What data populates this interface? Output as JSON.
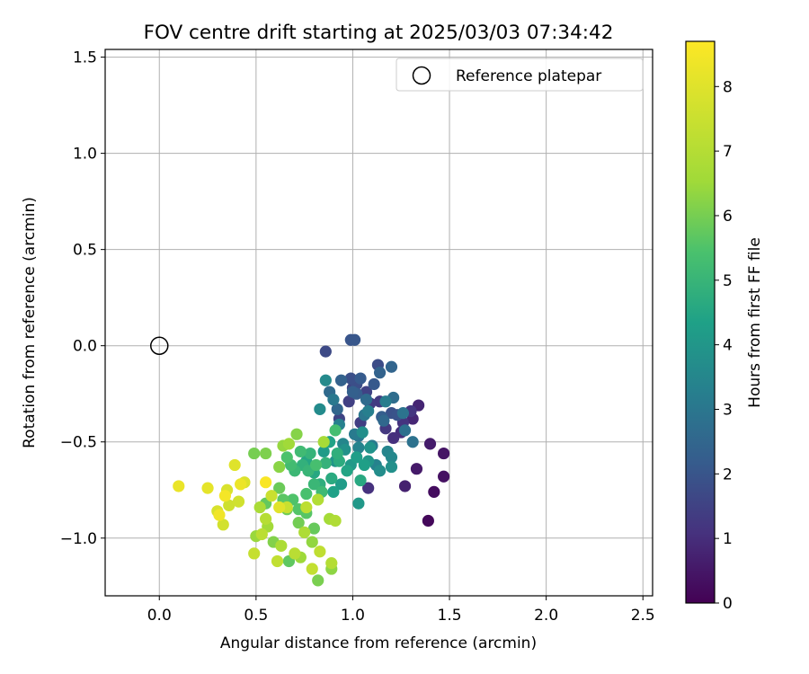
{
  "chart_data": {
    "type": "scatter",
    "title": "FOV centre drift starting at 2025/03/03 07:34:42",
    "xlabel": "Angular distance from reference (arcmin)",
    "ylabel": "Rotation from reference (arcmin)",
    "xlim": [
      -0.28,
      2.55
    ],
    "ylim": [
      -1.3,
      1.54
    ],
    "xticks": [
      0.0,
      0.5,
      1.0,
      1.5,
      2.0,
      2.5
    ],
    "xtick_labels": [
      "0.0",
      "0.5",
      "1.0",
      "1.5",
      "2.0",
      "2.5"
    ],
    "yticks": [
      -1.0,
      -0.5,
      0.0,
      0.5,
      1.0,
      1.5
    ],
    "ytick_labels": [
      "−1.0",
      "−0.5",
      "0.0",
      "0.5",
      "1.0",
      "1.5"
    ],
    "grid": true,
    "legend": {
      "position": "top-right",
      "entries": [
        "Reference platepar"
      ]
    },
    "reference_point": {
      "x": 0.0,
      "y": 0.0
    },
    "colorbar": {
      "label": "Hours from first FF file",
      "colormap": "viridis",
      "range": [
        0,
        8.7
      ],
      "ticks": [
        0,
        1,
        2,
        3,
        4,
        5,
        6,
        7,
        8
      ],
      "tick_labels": [
        "0",
        "1",
        "2",
        "3",
        "4",
        "5",
        "6",
        "7",
        "8"
      ]
    },
    "points_columns": [
      "x",
      "y",
      "hours"
    ],
    "points": [
      [
        1.39,
        -0.91,
        0.15
      ],
      [
        1.42,
        -0.76,
        0.25
      ],
      [
        1.47,
        -0.68,
        0.35
      ],
      [
        1.47,
        -0.56,
        0.45
      ],
      [
        1.33,
        -0.64,
        0.55
      ],
      [
        1.4,
        -0.51,
        0.6
      ],
      [
        1.27,
        -0.73,
        0.7
      ],
      [
        1.34,
        -0.31,
        0.8
      ],
      [
        1.31,
        -0.38,
        0.85
      ],
      [
        1.25,
        -0.45,
        1.0
      ],
      [
        1.21,
        -0.48,
        1.05
      ],
      [
        1.08,
        -0.74,
        1.1
      ],
      [
        1.26,
        -0.4,
        1.15
      ],
      [
        1.3,
        -0.34,
        1.2
      ],
      [
        1.17,
        -0.43,
        1.25
      ],
      [
        1.14,
        -0.29,
        1.3
      ],
      [
        1.09,
        -0.3,
        1.35
      ],
      [
        1.04,
        -0.4,
        1.4
      ],
      [
        0.98,
        -0.29,
        1.45
      ],
      [
        1.07,
        -0.24,
        1.5
      ],
      [
        0.93,
        -0.38,
        1.55
      ],
      [
        1.0,
        -0.22,
        1.6
      ],
      [
        0.86,
        -0.03,
        1.7
      ],
      [
        1.13,
        -0.1,
        1.75
      ],
      [
        1.02,
        -0.2,
        1.8
      ],
      [
        0.99,
        -0.17,
        1.85
      ],
      [
        1.2,
        -0.35,
        1.9
      ],
      [
        1.23,
        -0.36,
        1.95
      ],
      [
        0.99,
        0.03,
        2.0
      ],
      [
        1.01,
        0.03,
        2.05
      ],
      [
        1.11,
        -0.2,
        2.1
      ],
      [
        1.04,
        -0.17,
        2.15
      ],
      [
        1.02,
        -0.25,
        2.2
      ],
      [
        1.15,
        -0.37,
        2.25
      ],
      [
        1.0,
        -0.24,
        2.3
      ],
      [
        0.94,
        -0.18,
        2.35
      ],
      [
        1.14,
        -0.14,
        2.4
      ],
      [
        1.2,
        -0.11,
        2.45
      ],
      [
        0.92,
        -0.33,
        2.5
      ],
      [
        1.16,
        -0.39,
        2.55
      ],
      [
        0.88,
        -0.24,
        2.6
      ],
      [
        1.07,
        -0.28,
        2.65
      ],
      [
        1.21,
        -0.27,
        2.7
      ],
      [
        1.27,
        -0.44,
        2.8
      ],
      [
        1.31,
        -0.5,
        2.85
      ],
      [
        1.26,
        -0.35,
        2.9
      ],
      [
        1.03,
        -0.47,
        2.95
      ],
      [
        1.06,
        -0.36,
        3.0
      ],
      [
        0.9,
        -0.28,
        3.05
      ],
      [
        1.01,
        -0.46,
        3.1
      ],
      [
        1.1,
        -0.52,
        3.15
      ],
      [
        1.17,
        -0.29,
        3.2
      ],
      [
        1.08,
        -0.34,
        3.25
      ],
      [
        0.93,
        -0.41,
        3.3
      ],
      [
        1.12,
        -0.62,
        3.35
      ],
      [
        1.03,
        -0.53,
        3.4
      ],
      [
        1.18,
        -0.55,
        3.45
      ],
      [
        0.95,
        -0.51,
        3.5
      ],
      [
        1.2,
        -0.58,
        3.55
      ],
      [
        0.86,
        -0.18,
        3.6
      ],
      [
        0.83,
        -0.33,
        3.65
      ],
      [
        1.14,
        -0.65,
        3.7
      ],
      [
        1.05,
        -0.45,
        3.75
      ],
      [
        1.2,
        -0.63,
        3.8
      ],
      [
        0.96,
        -0.54,
        3.85
      ],
      [
        1.09,
        -0.53,
        3.9
      ],
      [
        0.91,
        -0.6,
        3.95
      ],
      [
        1.08,
        -0.6,
        4.0
      ],
      [
        1.03,
        -0.82,
        4.05
      ],
      [
        0.99,
        -0.62,
        4.1
      ],
      [
        0.85,
        -0.55,
        4.15
      ],
      [
        0.94,
        -0.72,
        4.2
      ],
      [
        1.02,
        -0.58,
        4.25
      ],
      [
        1.06,
        -0.62,
        4.3
      ],
      [
        0.9,
        -0.76,
        4.35
      ],
      [
        0.88,
        -0.5,
        4.4
      ],
      [
        0.97,
        -0.65,
        4.45
      ],
      [
        0.76,
        -0.6,
        4.5
      ],
      [
        0.8,
        -0.66,
        4.55
      ],
      [
        1.04,
        -0.7,
        4.6
      ],
      [
        0.89,
        -0.69,
        4.65
      ],
      [
        0.93,
        -0.6,
        4.7
      ],
      [
        0.83,
        -0.72,
        4.75
      ],
      [
        0.92,
        -0.56,
        4.8
      ],
      [
        0.74,
        -0.62,
        4.85
      ],
      [
        0.86,
        -0.61,
        4.9
      ],
      [
        0.78,
        -0.56,
        4.95
      ],
      [
        0.77,
        -0.65,
        5.0
      ],
      [
        0.8,
        -0.72,
        5.05
      ],
      [
        0.7,
        -0.65,
        5.1
      ],
      [
        0.84,
        -0.76,
        5.15
      ],
      [
        0.73,
        -0.55,
        5.2
      ],
      [
        0.68,
        -0.62,
        5.25
      ],
      [
        0.91,
        -0.44,
        5.3
      ],
      [
        0.81,
        -0.62,
        5.35
      ],
      [
        0.76,
        -0.77,
        5.4
      ],
      [
        0.66,
        -0.58,
        5.45
      ],
      [
        0.69,
        -0.8,
        5.5
      ],
      [
        0.72,
        -0.85,
        5.55
      ],
      [
        0.76,
        -0.87,
        5.6
      ],
      [
        0.64,
        -0.8,
        5.65
      ],
      [
        0.67,
        -1.12,
        5.7
      ],
      [
        0.55,
        -0.82,
        5.75
      ],
      [
        0.8,
        -0.95,
        5.8
      ],
      [
        0.62,
        -0.74,
        5.85
      ],
      [
        0.66,
        -0.85,
        5.9
      ],
      [
        0.72,
        -0.92,
        5.95
      ],
      [
        0.49,
        -0.56,
        6.0
      ],
      [
        0.82,
        -1.22,
        6.05
      ],
      [
        0.55,
        -0.56,
        6.1
      ],
      [
        0.59,
        -1.02,
        6.15
      ],
      [
        0.71,
        -0.46,
        6.2
      ],
      [
        0.62,
        -0.63,
        6.25
      ],
      [
        0.89,
        -1.16,
        6.3
      ],
      [
        0.79,
        -1.02,
        6.35
      ],
      [
        0.64,
        -0.52,
        6.4
      ],
      [
        0.5,
        -0.99,
        6.45
      ],
      [
        0.73,
        -1.1,
        6.5
      ],
      [
        0.67,
        -0.51,
        6.55
      ],
      [
        0.56,
        -0.94,
        6.6
      ],
      [
        0.88,
        -0.9,
        6.65
      ],
      [
        0.85,
        -0.5,
        6.7
      ],
      [
        0.52,
        -0.84,
        6.75
      ],
      [
        0.63,
        -1.04,
        6.8
      ],
      [
        0.75,
        -0.97,
        6.85
      ],
      [
        0.91,
        -0.91,
        6.9
      ],
      [
        0.82,
        -0.8,
        6.95
      ],
      [
        0.89,
        -1.13,
        7.0
      ],
      [
        0.55,
        -0.9,
        7.05
      ],
      [
        0.7,
        -1.08,
        7.1
      ],
      [
        0.53,
        -0.98,
        7.15
      ],
      [
        0.76,
        -0.84,
        7.2
      ],
      [
        0.83,
        -1.07,
        7.25
      ],
      [
        0.61,
        -1.12,
        7.3
      ],
      [
        0.79,
        -1.16,
        7.35
      ],
      [
        0.49,
        -1.08,
        7.4
      ],
      [
        0.66,
        -0.84,
        7.45
      ],
      [
        0.58,
        -0.78,
        7.5
      ],
      [
        0.36,
        -0.83,
        7.6
      ],
      [
        0.41,
        -0.81,
        7.65
      ],
      [
        0.33,
        -0.93,
        7.7
      ],
      [
        0.3,
        -0.86,
        7.8
      ],
      [
        0.35,
        -0.75,
        7.85
      ],
      [
        0.44,
        -0.71,
        7.9
      ],
      [
        0.39,
        -0.62,
        8.0
      ],
      [
        0.62,
        -0.84,
        8.05
      ],
      [
        0.25,
        -0.74,
        8.15
      ],
      [
        0.1,
        -0.73,
        8.25
      ],
      [
        0.42,
        -0.72,
        8.3
      ],
      [
        0.31,
        -0.88,
        8.4
      ],
      [
        0.34,
        -0.78,
        8.5
      ],
      [
        0.55,
        -0.71,
        8.6
      ]
    ]
  }
}
